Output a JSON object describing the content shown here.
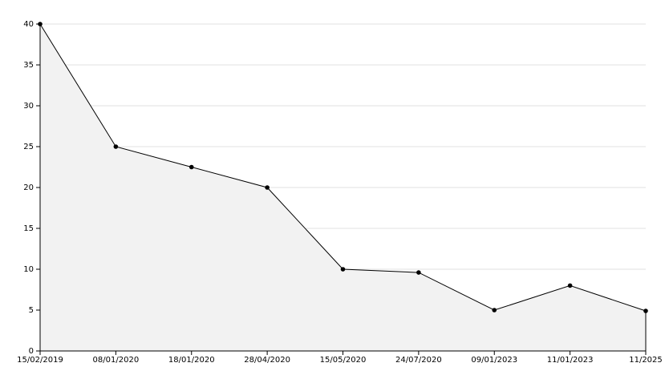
{
  "chart_data": {
    "type": "area",
    "categories": [
      "15/02/2019",
      "08/01/2020",
      "18/01/2020",
      "28/04/2020",
      "15/05/2020",
      "24/07/2020",
      "09/01/2023",
      "11/01/2023",
      "11/2025"
    ],
    "values": [
      40,
      25,
      22.5,
      20,
      10,
      9.6,
      5,
      8,
      4.9
    ],
    "color": "#000000",
    "fill": "#f2f2f2",
    "ylim": [
      0,
      40
    ],
    "yticks": [
      0,
      5,
      10,
      15,
      20,
      25,
      30,
      35,
      40
    ],
    "grid": true
  }
}
